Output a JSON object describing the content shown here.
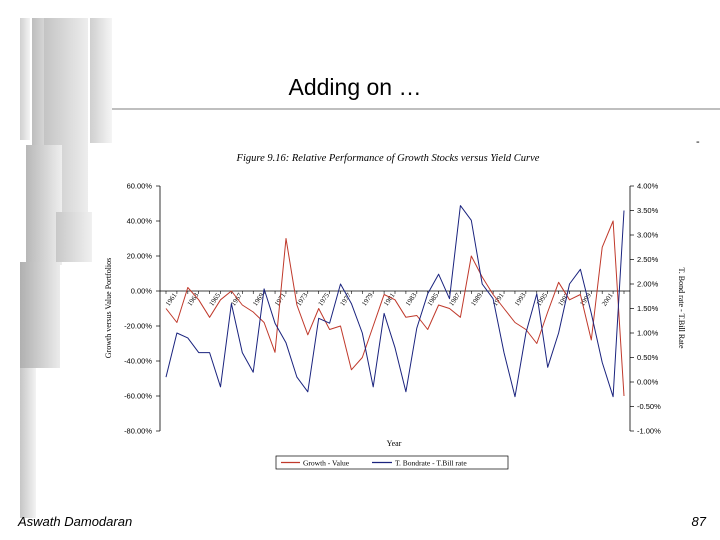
{
  "slide": {
    "title": "Adding on …",
    "footer_author": "Aswath Damodaran",
    "page_number": "87",
    "corner_mark": "-"
  },
  "chart_data": {
    "type": "line",
    "title": "Figure 9.16: Relative Performance of Growth Stocks versus Yield Curve",
    "xlabel": "Year",
    "ylabel_left": "Growth versus Value Portfolios",
    "ylabel_right": "T. Bond rate - T.Bill Rate",
    "ylim_left": [
      -80,
      60
    ],
    "ylim_right": [
      -1.0,
      4.0
    ],
    "yticks_left": [
      "60.00%",
      "40.00%",
      "20.00%",
      "0.00%",
      "-20.00%",
      "-40.00%",
      "-60.00%",
      "-80.00%"
    ],
    "yticks_right": [
      "4.00%",
      "3.50%",
      "3.00%",
      "2.50%",
      "2.00%",
      "1.50%",
      "1.00%",
      "0.50%",
      "0.00%",
      "-0.50%",
      "-1.00%"
    ],
    "x_tick_labels": [
      "1961",
      "1963",
      "1965",
      "1967",
      "1969",
      "1971",
      "1973",
      "1975",
      "1977",
      "1979",
      "1981",
      "1983",
      "1985",
      "1987",
      "1989",
      "1991",
      "1993",
      "1995",
      "1997",
      "1999",
      "2001"
    ],
    "years": [
      1960,
      1961,
      1962,
      1963,
      1964,
      1965,
      1966,
      1967,
      1968,
      1969,
      1970,
      1971,
      1972,
      1973,
      1974,
      1975,
      1976,
      1977,
      1978,
      1979,
      1980,
      1981,
      1982,
      1983,
      1984,
      1985,
      1986,
      1987,
      1988,
      1989,
      1990,
      1991,
      1992,
      1993,
      1994,
      1995,
      1996,
      1997,
      1998,
      1999,
      2000,
      2001,
      2002
    ],
    "series": [
      {
        "name": "Growth - Value",
        "axis": "left",
        "color": "#c0392b",
        "values": [
          -10,
          -18,
          2,
          -5,
          -15,
          -5,
          0,
          -8,
          -12,
          -18,
          -35,
          30,
          -8,
          -25,
          -10,
          -22,
          -20,
          -45,
          -38,
          -20,
          -2,
          -5,
          -15,
          -14,
          -22,
          -8,
          -10,
          -15,
          20,
          8,
          -2,
          -10,
          -18,
          -22,
          -30,
          -12,
          5,
          -5,
          -2,
          -28,
          25,
          40,
          -60
        ]
      },
      {
        "name": "T. Bondrate - T.Bill rate",
        "axis": "right",
        "color": "#1a237e",
        "values": [
          0.1,
          1.0,
          0.9,
          0.6,
          0.6,
          -0.1,
          1.6,
          0.6,
          0.2,
          1.9,
          1.2,
          0.8,
          0.1,
          -0.2,
          1.3,
          1.2,
          2.0,
          1.6,
          1.0,
          -0.1,
          1.4,
          0.7,
          -0.2,
          1.1,
          1.8,
          2.2,
          1.7,
          3.6,
          3.3,
          2.0,
          1.7,
          0.6,
          -0.3,
          1.0,
          1.8,
          0.3,
          1.0,
          2.0,
          2.3,
          1.4,
          0.4,
          -0.3,
          3.5
        ]
      }
    ],
    "legend": "bottom"
  }
}
